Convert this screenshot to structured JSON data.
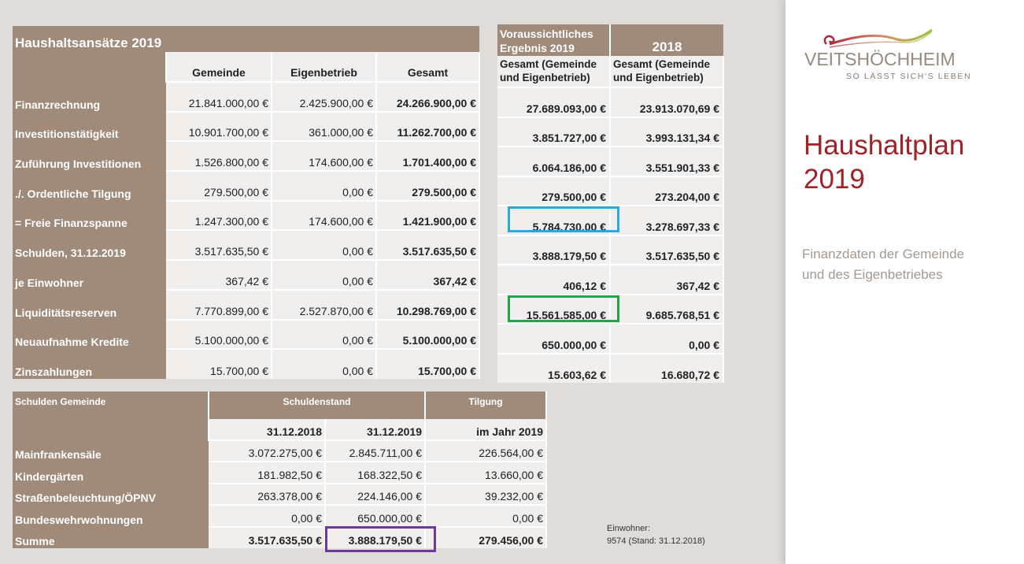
{
  "main": {
    "title": "Haushaltsansätze 2019",
    "columns": [
      "Gemeinde",
      "Eigenbetrieb",
      "Gesamt"
    ],
    "rows": [
      {
        "label": "Finanzrechnung",
        "gemeinde": "21.841.000,00 €",
        "eigenbetrieb": "2.425.900,00 €",
        "gesamt": "24.266.900,00 €"
      },
      {
        "label": "Investitionstätigkeit",
        "gemeinde": "10.901.700,00 €",
        "eigenbetrieb": "361.000,00 €",
        "gesamt": "11.262.700,00 €"
      },
      {
        "label": "Zuführung Investitionen",
        "gemeinde": "1.526.800,00 €",
        "eigenbetrieb": "174.600,00 €",
        "gesamt": "1.701.400,00 €"
      },
      {
        "label": "./. Ordentliche Tilgung",
        "gemeinde": "279.500,00 €",
        "eigenbetrieb": "0,00 €",
        "gesamt": "279.500,00 €"
      },
      {
        "label": "= Freie Finanzspanne",
        "gemeinde": "1.247.300,00 €",
        "eigenbetrieb": "174.600,00 €",
        "gesamt": "1.421.900,00 €"
      },
      {
        "label": "Schulden, 31.12.2019",
        "gemeinde": "3.517.635,50 €",
        "eigenbetrieb": "0,00 €",
        "gesamt": "3.517.635,50 €"
      },
      {
        "label": "je Einwohner",
        "gemeinde": "367,42 €",
        "eigenbetrieb": "0,00 €",
        "gesamt": "367,42 €"
      },
      {
        "label": "Liquiditätsreserven",
        "gemeinde": "7.770.899,00 €",
        "eigenbetrieb": "2.527.870,00 €",
        "gesamt": "10.298.769,00 €"
      },
      {
        "label": "Neuaufnahme Kredite",
        "gemeinde": "5.100.000,00 €",
        "eigenbetrieb": "0,00 €",
        "gesamt": "5.100.000,00 €"
      },
      {
        "label": "Zinszahlungen",
        "gemeinde": "15.700,00 €",
        "eigenbetrieb": "0,00 €",
        "gesamt": "15.700,00 €"
      }
    ]
  },
  "right": {
    "header1": "Voraussichtliches Ergebnis 2019",
    "header2": "2018",
    "sub1": "Gesamt (Gemeinde und Eigenbetrieb)",
    "sub2": "Gesamt (Gemeinde und Eigenbetrieb)",
    "rows": [
      {
        "v2019": "27.689.093,00 €",
        "v2018": "23.913.070,69 €"
      },
      {
        "v2019": "3.851.727,00 €",
        "v2018": "3.993.131,34 €"
      },
      {
        "v2019": "6.064.186,00 €",
        "v2018": "3.551.901,33 €"
      },
      {
        "v2019": "279.500,00 €",
        "v2018": "273.204,00 €"
      },
      {
        "v2019": "5.784.730.00 €",
        "v2018": "3.278.697,33 €"
      },
      {
        "v2019": "3.888.179,50 €",
        "v2018": "3.517.635,50 €"
      },
      {
        "v2019": "406,12 €",
        "v2018": "367,42 €"
      },
      {
        "v2019": "15.561.585,00 €",
        "v2018": "9.685.768,51 €"
      },
      {
        "v2019": "650.000,00 €",
        "v2018": "0,00 €"
      },
      {
        "v2019": "15.603,62 €",
        "v2018": "16.680,72 €"
      }
    ]
  },
  "debt": {
    "header_label": "Schulden Gemeinde",
    "header_stand": "Schuldenstand",
    "header_tilgung": "Tilgung",
    "sub": [
      "31.12.2018",
      "31.12.2019",
      "im Jahr 2019"
    ],
    "rows": [
      {
        "label": "Mainfrankensäle",
        "a": "3.072.275,00 €",
        "b": "2.845.711,00 €",
        "c": "226.564,00 €"
      },
      {
        "label": "Kindergärten",
        "a": "181.982,50 €",
        "b": "168.322,50 €",
        "c": "13.660,00 €"
      },
      {
        "label": "Straßenbeleuchtung/ÖPNV",
        "a": "263.378,00 €",
        "b": "224.146,00 €",
        "c": "39.232,00 €"
      },
      {
        "label": "Bundeswehrwohnungen",
        "a": "0,00 €",
        "b": "650.000,00 €",
        "c": "0,00 €"
      },
      {
        "label": "Summe",
        "a": "3.517.635,50 €",
        "b": "3.888.179,50 €",
        "c": "279.456,00 €"
      }
    ]
  },
  "note": {
    "line1": "Einwohner:",
    "line2": "9574 (Stand: 31.12.2018)"
  },
  "panel": {
    "logo_word": "VEITSHÖCHHEIM",
    "logo_sub": "SO LÄSST SICH'S LEBEN",
    "title_line1": "Haushaltplan",
    "title_line2": "2019",
    "subtitle_line1": "Finanzdaten der Gemeinde",
    "subtitle_line2": "und des Eigenbetriebes"
  },
  "colors": {
    "header_brown": "#a08b7b",
    "cell_bg": "#f1efed",
    "title_red": "#a02227",
    "mark_blue": "#29a8e0",
    "mark_green": "#1fa54a",
    "mark_purple": "#6d3a9c"
  }
}
